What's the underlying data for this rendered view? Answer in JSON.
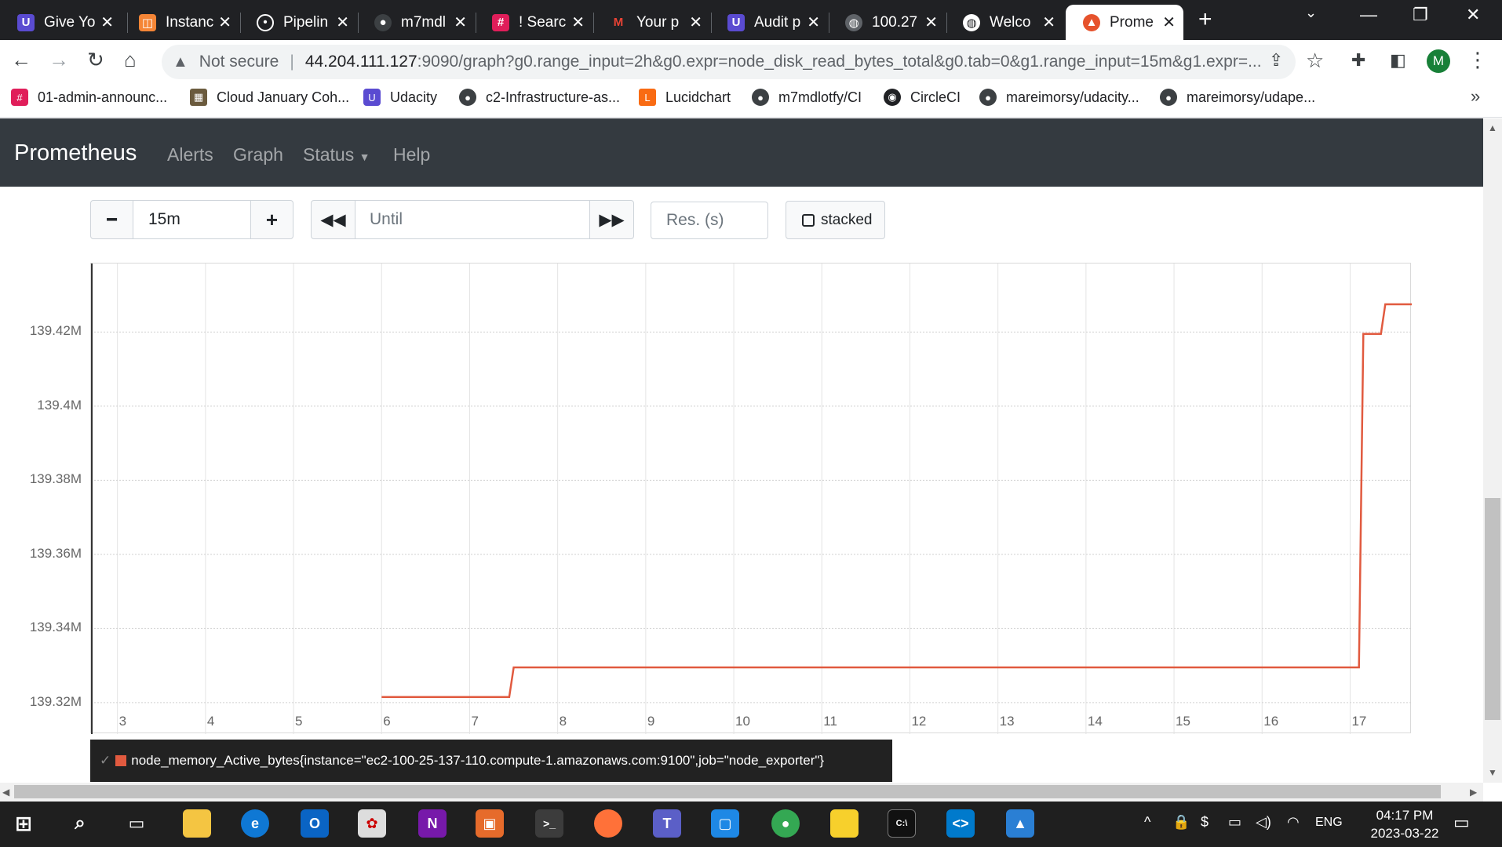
{
  "tabs": [
    "Give Yo",
    "Instanc",
    "Pipelin",
    "m7mdl",
    "! Searc",
    "Your p",
    "Audit p",
    "100.27",
    "Welco",
    "Prome"
  ],
  "address": {
    "security": "Not secure",
    "host": "44.204.111.127",
    "rest": ":9090/graph?g0.range_input=2h&g0.expr=node_disk_read_bytes_total&g0.tab=0&g1.range_input=15m&g1.expr=..."
  },
  "profile": {
    "initial": "M"
  },
  "bookmarks": [
    "01-admin-announc...",
    "Cloud January Coh...",
    "Udacity",
    "c2-Infrastructure-as...",
    "Lucidchart",
    "m7mdlotfy/CI",
    "CircleCI",
    "mareimorsy/udacity...",
    "mareimorsy/udape..."
  ],
  "nav": {
    "brand": "Prometheus",
    "alerts": "Alerts",
    "graph": "Graph",
    "status": "Status",
    "help": "Help"
  },
  "controls": {
    "range": "15m",
    "until_placeholder": "Until",
    "res_placeholder": "Res. (s)",
    "stacked": "stacked"
  },
  "chart_data": {
    "type": "line",
    "title": "",
    "xlabel": "",
    "ylabel": "",
    "x_ticks": [
      "3",
      "4",
      "5",
      "6",
      "7",
      "8",
      "9",
      "10",
      "11",
      "12",
      "13",
      "14",
      "15",
      "16",
      "17"
    ],
    "y_ticks": [
      "139.32M",
      "139.34M",
      "139.36M",
      "139.38M",
      "139.4M",
      "139.42M"
    ],
    "xlim": [
      2.7,
      17.7
    ],
    "ylim": [
      139.3115,
      139.4385
    ],
    "grid": true,
    "series": [
      {
        "name": "node_memory_Active_bytes{instance=\"ec2-100-25-137-110.compute-1.amazonaws.com:9100\",job=\"node_exporter\"}",
        "color": "#e15a3f",
        "unit": "M",
        "x": [
          6.0,
          7.45,
          7.5,
          17.1,
          17.15,
          17.35,
          17.4,
          17.7
        ],
        "y": [
          139.3215,
          139.3215,
          139.3295,
          139.3295,
          139.4195,
          139.4195,
          139.4275,
          139.4275
        ]
      }
    ]
  },
  "taskbar": {
    "lang": "ENG",
    "time": "04:17 PM",
    "date": "2023-03-22"
  }
}
